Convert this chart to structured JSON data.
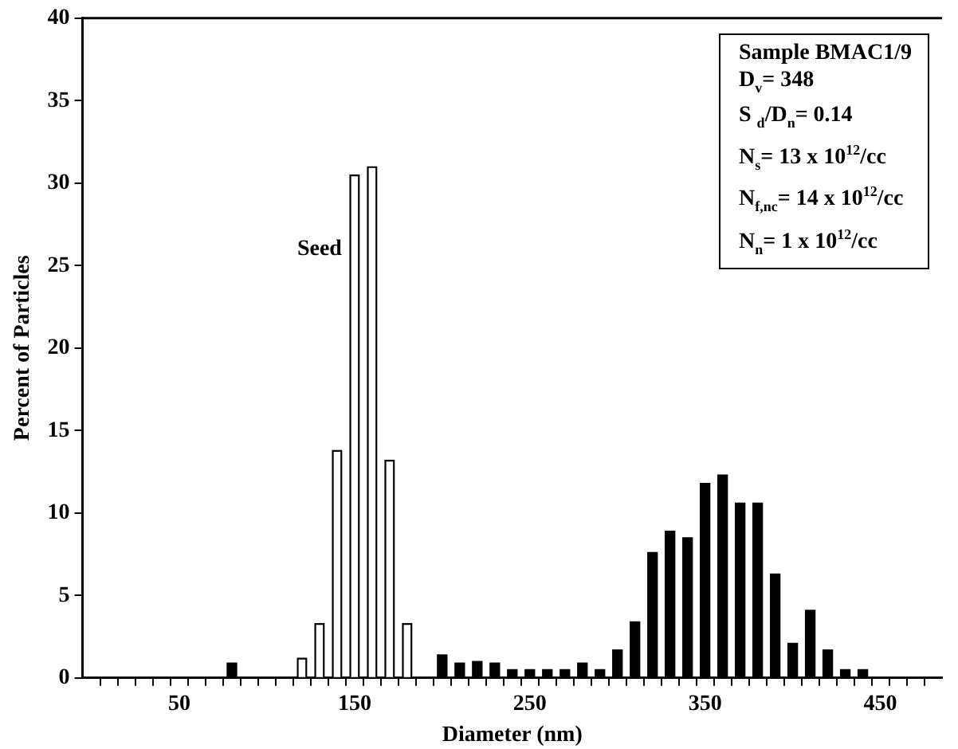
{
  "chart_data": {
    "type": "bar",
    "xlabel": "Diameter (nm)",
    "ylabel": "Percent of Particles",
    "series": [
      {
        "color": "#ffffff",
        "x": [
          120,
          130,
          140,
          150,
          160,
          170,
          180
        ],
        "values": [
          1.2,
          3.3,
          13.8,
          30.5,
          31.0,
          13.2,
          3.3
        ]
      },
      {
        "color": "#000000",
        "x": [
          80,
          200,
          210,
          220,
          230,
          240,
          250,
          260,
          270,
          280,
          290,
          300,
          310,
          320,
          330,
          340,
          350,
          360,
          370,
          380,
          390,
          400,
          410,
          420,
          430,
          440
        ],
        "values": [
          0.9,
          1.4,
          0.9,
          1.0,
          0.9,
          0.5,
          0.5,
          0.5,
          0.5,
          0.9,
          0.5,
          1.7,
          3.4,
          7.6,
          8.9,
          8.5,
          11.8,
          12.3,
          10.6,
          10.6,
          6.3,
          2.1,
          4.1,
          1.7,
          0.5,
          0.5
        ]
      }
    ],
    "xlim": [
      0,
      480
    ],
    "xticks": [
      {
        "value": 10,
        "label": null
      },
      {
        "value": 20,
        "label": null
      },
      {
        "value": 30,
        "label": null
      },
      {
        "value": 40,
        "label": null
      },
      50,
      {
        "value": 60,
        "label": null
      },
      {
        "value": 70,
        "label": null
      },
      {
        "value": 80,
        "label": null
      },
      {
        "value": 90,
        "label": null
      },
      {
        "value": 100,
        "label": null
      },
      {
        "value": 110,
        "label": null
      },
      {
        "value": 120,
        "label": null
      },
      {
        "value": 130,
        "label": null
      },
      {
        "value": 140,
        "label": null
      },
      150,
      {
        "value": 160,
        "label": null
      },
      {
        "value": 170,
        "label": null
      },
      {
        "value": 180,
        "label": null
      },
      {
        "value": 190,
        "label": null
      },
      {
        "value": 200,
        "label": null
      },
      {
        "value": 210,
        "label": null
      },
      {
        "value": 220,
        "label": null
      },
      {
        "value": 230,
        "label": null
      },
      {
        "value": 240,
        "label": null
      },
      250,
      {
        "value": 260,
        "label": null
      },
      {
        "value": 270,
        "label": null
      },
      {
        "value": 280,
        "label": null
      },
      {
        "value": 290,
        "label": null
      },
      {
        "value": 300,
        "label": null
      },
      {
        "value": 310,
        "label": null
      },
      {
        "value": 320,
        "label": null
      },
      {
        "value": 330,
        "label": null
      },
      {
        "value": 340,
        "label": null
      },
      350,
      {
        "value": 360,
        "label": null
      },
      {
        "value": 370,
        "label": null
      },
      {
        "value": 380,
        "label": null
      },
      {
        "value": 390,
        "label": null
      },
      {
        "value": 400,
        "label": null
      },
      {
        "value": 410,
        "label": null
      },
      {
        "value": 420,
        "label": null
      },
      {
        "value": 430,
        "label": null
      },
      {
        "value": 440,
        "label": null
      },
      450,
      {
        "value": 460,
        "label": null
      },
      {
        "value": 470,
        "label": null
      }
    ],
    "ylim": [
      0,
      40
    ],
    "yticks": [
      0,
      5,
      10,
      15,
      20,
      25,
      30,
      35,
      40
    ],
    "grid": false,
    "legend": false,
    "annotations": [
      "Seed",
      "Sample BMAC1/9",
      "D$_{v}$= 348",
      "S $_{d}$/D$_{n}$= 0.14",
      "N$_{s}$= 13 x 10$^{12}$/cc",
      "N$_{f,nc}$= 14 x 10$^{12}$/cc",
      "N$_{n}$= 1 x 10$^{12}$/cc"
    ]
  }
}
